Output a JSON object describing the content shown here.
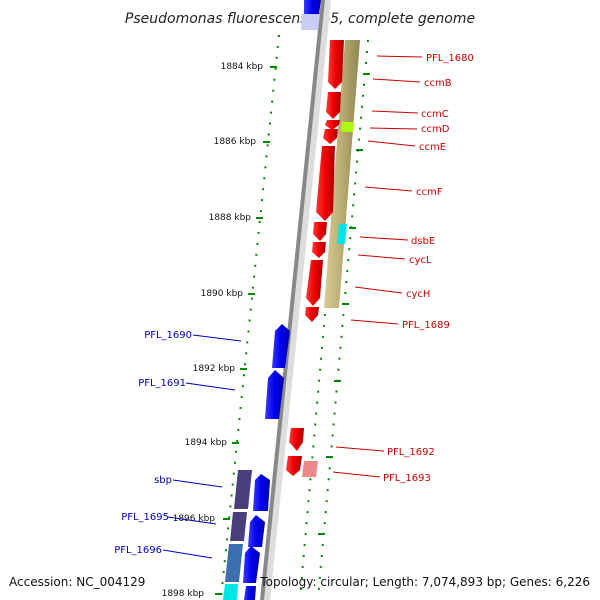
{
  "title": "Pseudomonas fluorescens Pf-5, complete genome",
  "footer": {
    "accession": "Accession: NC_004129",
    "topology": "Topology: circular; Length: 7,074,893 bp; Genes: 6,226"
  },
  "ticks": [
    "1884 kbp",
    "1886 kbp",
    "1888 kbp",
    "1890 kbp",
    "1892 kbp",
    "1894 kbp",
    "1896 kbp",
    "1898 kbp"
  ],
  "right_labels": [
    "PFL_1680",
    "ccmB",
    "ccmC",
    "ccmD",
    "ccmE",
    "ccmF",
    "dsbE",
    "cycL",
    "cycH",
    "PFL_1689",
    "PFL_1692",
    "PFL_1693"
  ],
  "left_labels": [
    "PFL_1690",
    "PFL_1691",
    "sbp",
    "PFL_1695",
    "PFL_1696"
  ],
  "colors": {
    "forward_gene": "#0000ee",
    "reverse_gene": "#ee0000",
    "cog_band": "#b8ad72",
    "backbone": "#888888",
    "tick": "#008800",
    "label_red": "#cc0000",
    "label_blue": "#0000bb"
  }
}
